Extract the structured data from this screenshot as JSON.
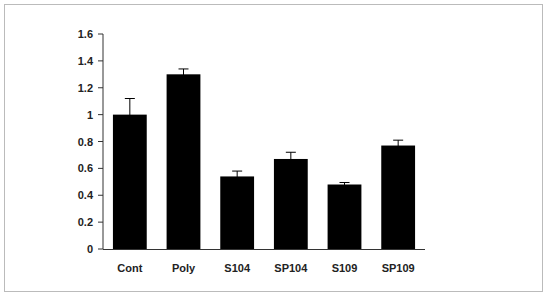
{
  "chart_data": {
    "type": "bar",
    "categories": [
      "Cont",
      "Poly",
      "S104",
      "SP104",
      "S109",
      "SP109"
    ],
    "values": [
      1.0,
      1.3,
      0.54,
      0.67,
      0.48,
      0.77
    ],
    "errors": [
      0.12,
      0.04,
      0.04,
      0.05,
      0.015,
      0.04
    ],
    "color": "#000000",
    "ylim": [
      0,
      1.6
    ],
    "yticks": [
      0,
      0.2,
      0.4,
      0.6,
      0.8,
      1,
      1.2,
      1.4,
      1.6
    ],
    "grid": false
  }
}
